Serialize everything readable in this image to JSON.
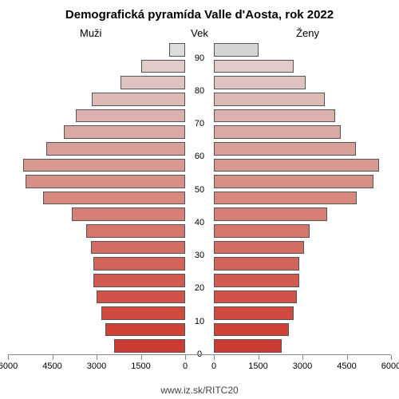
{
  "title": "Demografická pyramída Valle d'Aosta, rok 2022",
  "labels": {
    "left": "Muži",
    "mid": "Vek",
    "right": "Ženy"
  },
  "source": "www.iz.sk/RITC20",
  "axis": {
    "max": 6000,
    "ticks": [
      0,
      1500,
      3000,
      4500,
      6000
    ]
  },
  "chart_bg": "#ffffff",
  "bar_border": "#555555",
  "age_labels_every": 10,
  "bars": [
    {
      "age": 0,
      "m": 2400,
      "f": 2300,
      "cm": "#cc3b33",
      "cf": "#cc3b33"
    },
    {
      "age": 5,
      "m": 2700,
      "f": 2550,
      "cm": "#ce4238",
      "cf": "#ce4238"
    },
    {
      "age": 10,
      "m": 2850,
      "f": 2700,
      "cm": "#cf4a3f",
      "cf": "#cf4a3f"
    },
    {
      "age": 15,
      "m": 3000,
      "f": 2800,
      "cm": "#d05248",
      "cf": "#d05248"
    },
    {
      "age": 20,
      "m": 3100,
      "f": 2900,
      "cm": "#d15b51",
      "cf": "#d15b51"
    },
    {
      "age": 25,
      "m": 3100,
      "f": 2900,
      "cm": "#d2645a",
      "cf": "#d2645a"
    },
    {
      "age": 30,
      "m": 3200,
      "f": 3050,
      "cm": "#d36d63",
      "cf": "#d36d63"
    },
    {
      "age": 35,
      "m": 3350,
      "f": 3250,
      "cm": "#d4766c",
      "cf": "#d4766c"
    },
    {
      "age": 40,
      "m": 3850,
      "f": 3850,
      "cm": "#d57f76",
      "cf": "#d57f76"
    },
    {
      "age": 45,
      "m": 4800,
      "f": 4850,
      "cm": "#d6887f",
      "cf": "#d6887f"
    },
    {
      "age": 50,
      "m": 5400,
      "f": 5400,
      "cm": "#d79088",
      "cf": "#d79088"
    },
    {
      "age": 55,
      "m": 5500,
      "f": 5600,
      "cm": "#d89892",
      "cf": "#d89892"
    },
    {
      "age": 60,
      "m": 4700,
      "f": 4800,
      "cm": "#d9a09b",
      "cf": "#d9a09b"
    },
    {
      "age": 65,
      "m": 4100,
      "f": 4300,
      "cm": "#daa9a4",
      "cf": "#daa9a4"
    },
    {
      "age": 70,
      "m": 3700,
      "f": 4100,
      "cm": "#dcb1ad",
      "cf": "#dcb1ad"
    },
    {
      "age": 75,
      "m": 3150,
      "f": 3750,
      "cm": "#ddbab6",
      "cf": "#ddbab6"
    },
    {
      "age": 80,
      "m": 2200,
      "f": 3100,
      "cm": "#dfc3c0",
      "cf": "#dfc3c0"
    },
    {
      "age": 85,
      "m": 1500,
      "f": 2700,
      "cm": "#e2ccc9",
      "cf": "#e2ccc9"
    },
    {
      "age": 90,
      "m": 550,
      "f": 1500,
      "cm": "#dcdcdc",
      "cf": "#d4d4d4"
    }
  ]
}
